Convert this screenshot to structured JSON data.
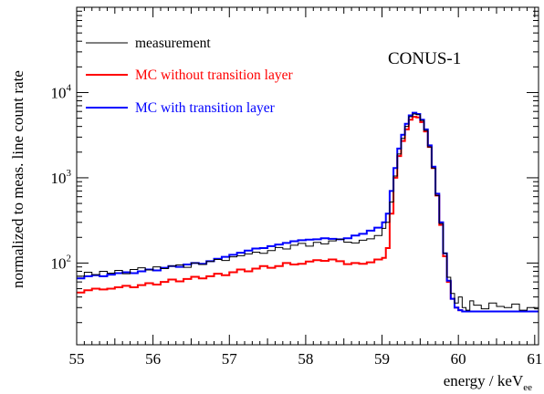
{
  "chart_data": {
    "type": "line",
    "step": true,
    "xlabel": "energy / keV",
    "xlabel_sub": "ee",
    "ylabel": "normalized to meas. line count rate",
    "xlim": [
      55,
      61.05
    ],
    "ylim": [
      11,
      100000
    ],
    "yscale": "log",
    "grid": false,
    "legend_position": "top-left",
    "annotation": "CONUS-1",
    "x_ticks": [
      "55",
      "56",
      "57",
      "58",
      "59",
      "60",
      "61"
    ],
    "y_ticks": [
      {
        "value": 100,
        "base": "10",
        "exp": "2"
      },
      {
        "value": 1000,
        "base": "10",
        "exp": "3"
      },
      {
        "value": 10000,
        "base": "10",
        "exp": "4"
      }
    ],
    "series": [
      {
        "name": "measurement",
        "color": "#000000",
        "x": [
          55.0,
          55.1,
          55.2,
          55.3,
          55.4,
          55.5,
          55.6,
          55.7,
          55.8,
          55.9,
          56.0,
          56.1,
          56.2,
          56.3,
          56.4,
          56.5,
          56.6,
          56.7,
          56.8,
          56.9,
          57.0,
          57.1,
          57.2,
          57.3,
          57.4,
          57.5,
          57.6,
          57.7,
          57.8,
          57.9,
          58.0,
          58.1,
          58.2,
          58.3,
          58.4,
          58.5,
          58.6,
          58.7,
          58.8,
          58.9,
          59.0,
          59.05,
          59.1,
          59.15,
          59.2,
          59.25,
          59.3,
          59.35,
          59.4,
          59.45,
          59.5,
          59.55,
          59.6,
          59.65,
          59.7,
          59.75,
          59.8,
          59.85,
          59.9,
          59.95,
          60.0,
          60.05,
          60.1,
          60.15,
          60.2,
          60.3,
          60.4,
          60.5,
          60.6,
          60.7,
          60.8,
          60.9,
          61.0
        ],
        "values": [
          70,
          78,
          73,
          80,
          76,
          82,
          75,
          84,
          88,
          83,
          90,
          86,
          92,
          95,
          89,
          100,
          96,
          104,
          110,
          107,
          118,
          122,
          128,
          134,
          130,
          140,
          152,
          146,
          162,
          170,
          158,
          175,
          168,
          182,
          190,
          176,
          172,
          185,
          192,
          210,
          255,
          300,
          520,
          1050,
          1900,
          2900,
          4000,
          5200,
          5600,
          5500,
          4700,
          3600,
          2300,
          1300,
          620,
          290,
          130,
          68,
          44,
          34,
          40,
          30,
          28,
          36,
          32,
          29,
          34,
          31,
          30,
          33,
          28,
          30,
          29
        ]
      },
      {
        "name": "MC without transition layer",
        "color": "#ff0000",
        "x": [
          55.0,
          55.1,
          55.2,
          55.3,
          55.4,
          55.5,
          55.6,
          55.7,
          55.8,
          55.9,
          56.0,
          56.1,
          56.2,
          56.3,
          56.4,
          56.5,
          56.6,
          56.7,
          56.8,
          56.9,
          57.0,
          57.1,
          57.2,
          57.3,
          57.4,
          57.5,
          57.6,
          57.7,
          57.8,
          57.9,
          58.0,
          58.1,
          58.2,
          58.3,
          58.4,
          58.5,
          58.6,
          58.7,
          58.8,
          58.9,
          59.0,
          59.05,
          59.1,
          59.15,
          59.2,
          59.25,
          59.3,
          59.35,
          59.4,
          59.45,
          59.5,
          59.55,
          59.6,
          59.65,
          59.7,
          59.75,
          59.8,
          59.85,
          59.9,
          59.95,
          60.0,
          60.05,
          60.1,
          60.15,
          60.2,
          60.3,
          60.4,
          60.5,
          60.6,
          60.7,
          60.8,
          60.9,
          61.0
        ],
        "values": [
          45,
          48,
          50,
          49,
          50,
          52,
          54,
          52,
          55,
          58,
          56,
          60,
          64,
          61,
          65,
          69,
          66,
          70,
          75,
          72,
          78,
          84,
          80,
          86,
          92,
          88,
          92,
          100,
          96,
          98,
          104,
          108,
          106,
          110,
          105,
          97,
          100,
          98,
          102,
          110,
          115,
          150,
          380,
          1000,
          1800,
          2700,
          3700,
          4800,
          5200,
          5100,
          4500,
          3500,
          2300,
          1300,
          620,
          280,
          120,
          60,
          38,
          30,
          28,
          27,
          27,
          27,
          27,
          27,
          27,
          27,
          27,
          27,
          27,
          27,
          27
        ]
      },
      {
        "name": "MC with transition layer",
        "color": "#0000ff",
        "x": [
          55.0,
          55.1,
          55.2,
          55.3,
          55.4,
          55.5,
          55.6,
          55.7,
          55.8,
          55.9,
          56.0,
          56.1,
          56.2,
          56.3,
          56.4,
          56.5,
          56.6,
          56.7,
          56.8,
          56.9,
          57.0,
          57.1,
          57.2,
          57.3,
          57.4,
          57.5,
          57.6,
          57.7,
          57.8,
          57.9,
          58.0,
          58.1,
          58.2,
          58.3,
          58.4,
          58.5,
          58.6,
          58.7,
          58.8,
          58.9,
          59.0,
          59.05,
          59.1,
          59.15,
          59.2,
          59.25,
          59.3,
          59.35,
          59.4,
          59.45,
          59.5,
          59.55,
          59.6,
          59.65,
          59.7,
          59.75,
          59.8,
          59.85,
          59.9,
          59.95,
          60.0,
          60.05,
          60.1,
          60.15,
          60.2,
          60.3,
          60.4,
          60.5,
          60.6,
          60.7,
          60.8,
          60.9,
          61.0
        ],
        "values": [
          66,
          70,
          72,
          70,
          73,
          76,
          78,
          76,
          80,
          84,
          82,
          88,
          92,
          90,
          96,
          100,
          98,
          105,
          112,
          118,
          125,
          132,
          140,
          148,
          150,
          158,
          165,
          172,
          180,
          185,
          188,
          190,
          195,
          192,
          190,
          195,
          210,
          220,
          240,
          260,
          300,
          380,
          700,
          1300,
          2200,
          3200,
          4300,
          5400,
          5800,
          5600,
          4800,
          3700,
          2400,
          1350,
          650,
          300,
          130,
          62,
          38,
          30,
          28,
          27,
          27,
          27,
          27,
          27,
          27,
          27,
          27,
          27,
          27,
          27,
          27
        ]
      }
    ]
  }
}
